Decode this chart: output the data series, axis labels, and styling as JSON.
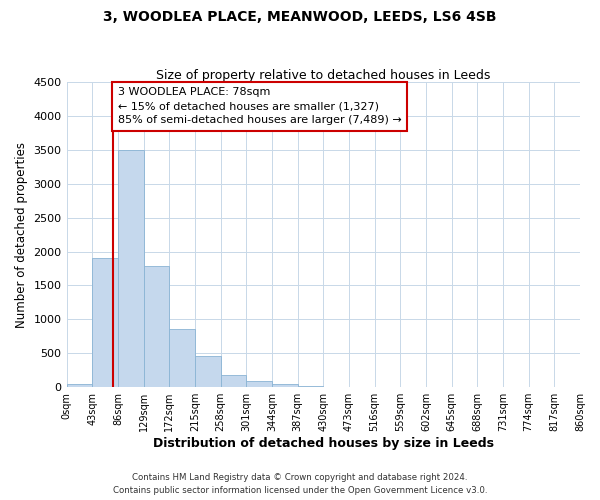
{
  "title_line1": "3, WOODLEA PLACE, MEANWOOD, LEEDS, LS6 4SB",
  "title_line2": "Size of property relative to detached houses in Leeds",
  "xlabel": "Distribution of detached houses by size in Leeds",
  "ylabel": "Number of detached properties",
  "bar_color": "#c5d8ed",
  "bar_edgecolor": "#8ab4d4",
  "bin_labels": [
    "0sqm",
    "43sqm",
    "86sqm",
    "129sqm",
    "172sqm",
    "215sqm",
    "258sqm",
    "301sqm",
    "344sqm",
    "387sqm",
    "430sqm",
    "473sqm",
    "516sqm",
    "559sqm",
    "602sqm",
    "645sqm",
    "688sqm",
    "731sqm",
    "774sqm",
    "817sqm",
    "860sqm"
  ],
  "bar_heights": [
    50,
    1900,
    3500,
    1780,
    860,
    460,
    185,
    90,
    40,
    15,
    5,
    0,
    0,
    0,
    0,
    0,
    0,
    0,
    0,
    0
  ],
  "ylim": [
    0,
    4500
  ],
  "yticks": [
    0,
    500,
    1000,
    1500,
    2000,
    2500,
    3000,
    3500,
    4000,
    4500
  ],
  "property_line_x": 78,
  "bin_width": 43,
  "annotation_text": "3 WOODLEA PLACE: 78sqm\n← 15% of detached houses are smaller (1,327)\n85% of semi-detached houses are larger (7,489) →",
  "annotation_box_color": "#ffffff",
  "annotation_box_edgecolor": "#cc0000",
  "red_line_color": "#cc0000",
  "footer_line1": "Contains HM Land Registry data © Crown copyright and database right 2024.",
  "footer_line2": "Contains public sector information licensed under the Open Government Licence v3.0.",
  "background_color": "#ffffff",
  "grid_color": "#c8d8e8"
}
